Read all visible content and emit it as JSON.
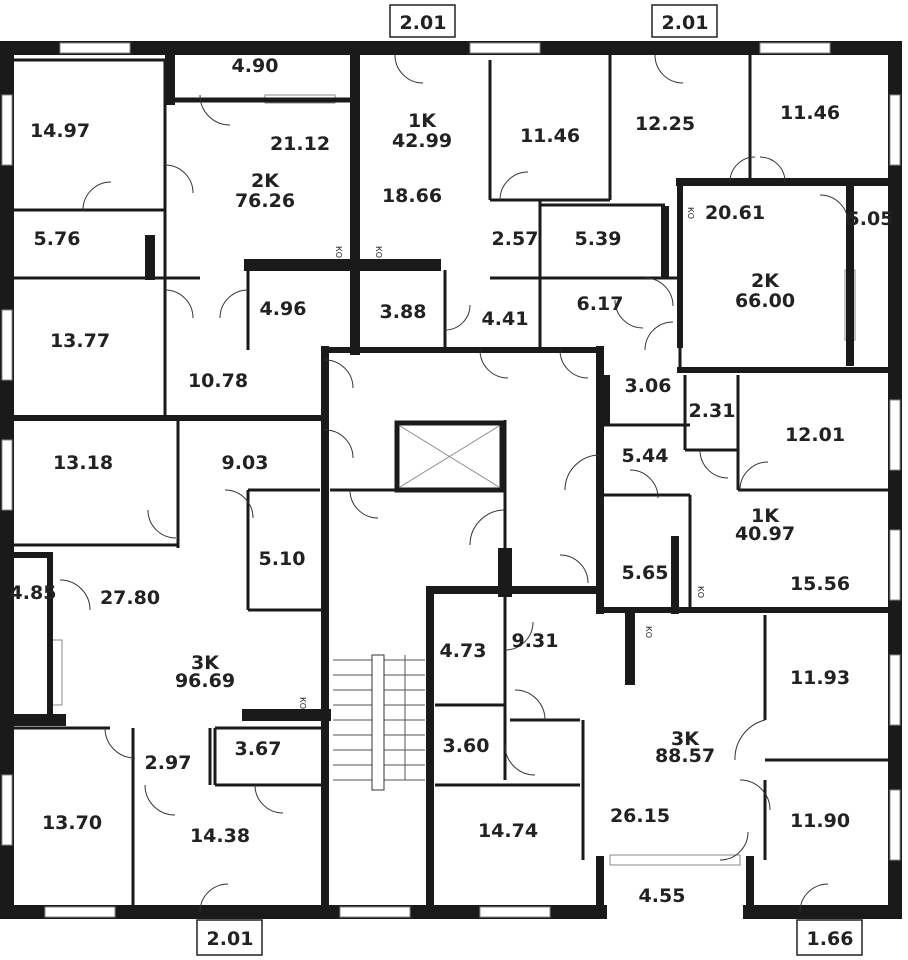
{
  "rooms": [
    "14.97",
    "4.90",
    "21.12",
    "2K",
    "76.26",
    "5.76",
    "13.77",
    "10.78",
    "4.96",
    "3.88",
    "1K",
    "42.99",
    "18.66",
    "11.46",
    "2.57",
    "4.41",
    "12.25",
    "11.46",
    "20.61",
    "5.05",
    "5.39",
    "6.17",
    "2K",
    "66.00",
    "3.06",
    "2.31",
    "12.01",
    "5.44",
    "1K",
    "40.97",
    "5.65",
    "15.56",
    "13.18",
    "9.03",
    "5.10",
    "4.85",
    "27.80",
    "3K",
    "96.69",
    "4.73",
    "9.31",
    "3.60",
    "3K",
    "88.57",
    "11.93",
    "11.90",
    "26.15",
    "14.74",
    "4.55",
    "3.67",
    "2.97",
    "13.70",
    "14.38",
    "2.01",
    "2.01",
    "2.01",
    "1.66"
  ],
  "ko_label": "КО"
}
